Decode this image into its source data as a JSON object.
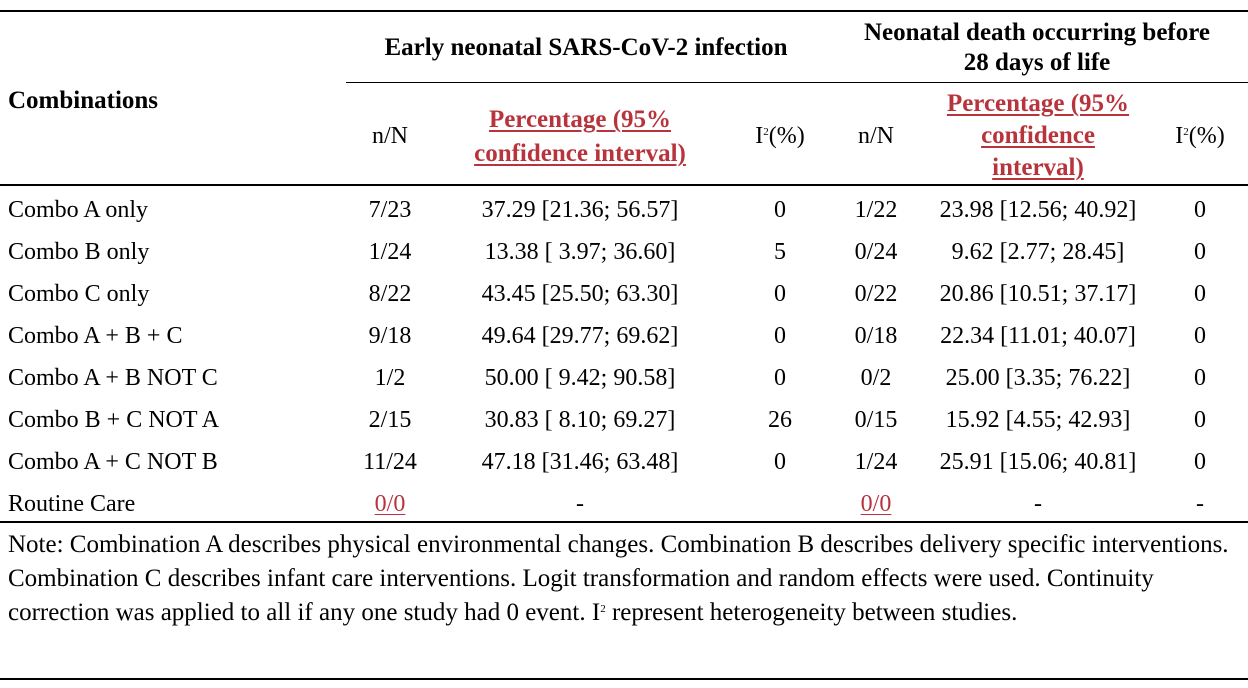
{
  "headers": {
    "combinations": "Combinations",
    "group1": "Early neonatal SARS-CoV-2 infection",
    "group2_line1": "Neonatal death occurring before",
    "group2_line2": "28 days of life",
    "nN": "n/N",
    "pct1_line1": "Percentage (95%",
    "pct1_line2": "confidence interval)",
    "pct2_line1": "Percentage (95%",
    "pct2_line2": "confidence",
    "pct2_line3": "interval)",
    "i2_base": "I",
    "i2_sup": "2",
    "i2_unit": "(%)"
  },
  "rows": [
    {
      "label": "Combo A only",
      "n1": "7/23",
      "p1": "37.29 [21.36; 56.57]",
      "i1": "0",
      "n2": "1/22",
      "p2": "23.98 [12.56; 40.92]",
      "i2": "0"
    },
    {
      "label": "Combo B only",
      "n1": "1/24",
      "p1": "13.38 [ 3.97; 36.60]",
      "i1": "5",
      "n2": "0/24",
      "p2": "9.62 [2.77; 28.45]",
      "i2": "0"
    },
    {
      "label": "Combo C only",
      "n1": "8/22",
      "p1": "43.45 [25.50; 63.30]",
      "i1": "0",
      "n2": "0/22",
      "p2": "20.86 [10.51; 37.17]",
      "i2": "0"
    },
    {
      "label": "Combo A + B + C",
      "n1": "9/18",
      "p1": "49.64 [29.77; 69.62]",
      "i1": "0",
      "n2": "0/18",
      "p2": "22.34 [11.01; 40.07]",
      "i2": "0"
    },
    {
      "label": "Combo A + B NOT C",
      "n1": "1/2",
      "p1": "50.00 [ 9.42; 90.58]",
      "i1": "0",
      "n2": "0/2",
      "p2": "25.00 [3.35; 76.22]",
      "i2": "0"
    },
    {
      "label": "Combo B + C NOT A",
      "n1": "2/15",
      "p1": "30.83 [ 8.10; 69.27]",
      "i1": "26",
      "n2": "0/15",
      "p2": "15.92 [4.55; 42.93]",
      "i2": "0"
    },
    {
      "label": "Combo A + C NOT B",
      "n1": "11/24",
      "p1": "47.18 [31.46; 63.48]",
      "i1": "0",
      "n2": "1/24",
      "p2": "25.91 [15.06; 40.81]",
      "i2": "0"
    },
    {
      "label": "Routine Care",
      "n1": "0/0",
      "p1": "-",
      "i1": "",
      "n2": "0/0",
      "p2": "-",
      "i2": "-"
    }
  ],
  "note": {
    "text1": "Note: Combination A describes physical environmental changes. Combination B describes delivery specific interventions. Combination C describes infant care interventions. Logit transformation and random effects were used. Continuity correction was applied to all if any one study had 0 event.  I",
    "sup": "2",
    "text2": " represent heterogeneity between studies."
  },
  "colors": {
    "highlight": "#b8343c"
  }
}
